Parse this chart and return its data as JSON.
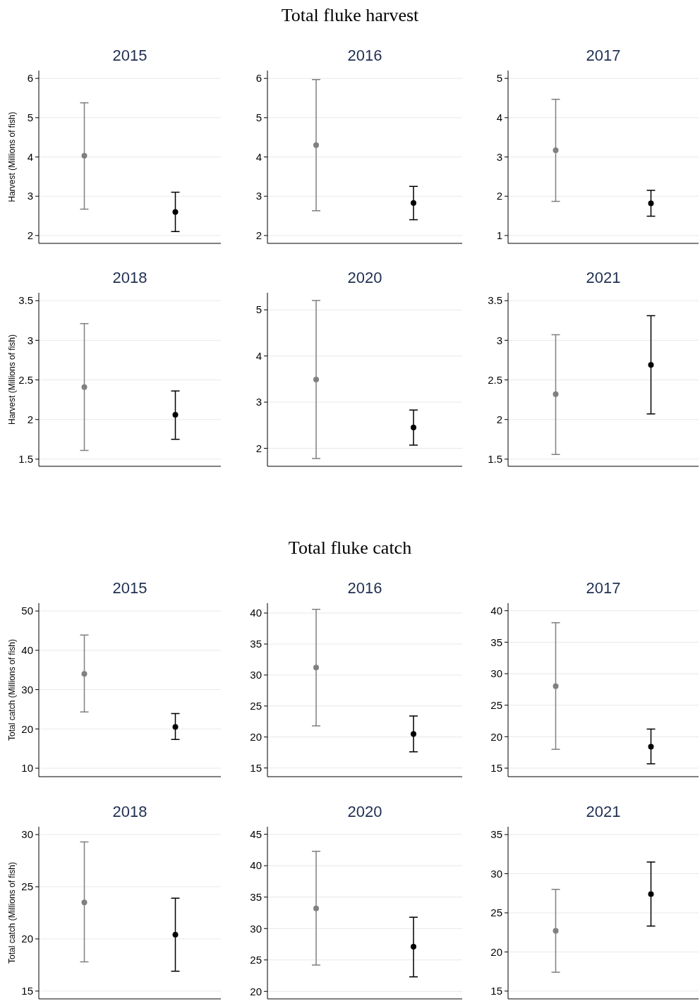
{
  "chart_data": [
    {
      "type": "scatter",
      "title": "2015",
      "ylabel": "Harvest (Millions of fish)",
      "annotations": [
        "Total fluke harvest"
      ],
      "categories": [
        null,
        null
      ],
      "values": [
        4.03,
        2.6
      ],
      "colors": [
        "#808080",
        "#000000"
      ],
      "errors": [
        [
          2.67,
          5.38
        ],
        [
          2.1,
          3.1
        ]
      ],
      "ylim": [
        1.8,
        6.2
      ],
      "yticks": [
        2,
        3,
        4,
        5,
        6
      ],
      "grid": "y",
      "tick_labels": "y",
      "marker": "circle"
    },
    {
      "type": "scatter",
      "title": "2016",
      "categories": [
        null,
        null
      ],
      "values": [
        4.3,
        2.83
      ],
      "colors": [
        "#808080",
        "#000000"
      ],
      "errors": [
        [
          2.63,
          5.97
        ],
        [
          2.4,
          3.25
        ]
      ],
      "ylim": [
        1.8,
        6.2
      ],
      "yticks": [
        2,
        3,
        4,
        5,
        6
      ],
      "grid": "y",
      "tick_labels": "y",
      "marker": "circle"
    },
    {
      "type": "scatter",
      "title": "2017",
      "categories": [
        null,
        null
      ],
      "values": [
        3.17,
        1.82
      ],
      "colors": [
        "#808080",
        "#000000"
      ],
      "errors": [
        [
          1.87,
          4.47
        ],
        [
          1.49,
          2.15
        ]
      ],
      "ylim": [
        0.8,
        5.2
      ],
      "yticks": [
        1,
        2,
        3,
        4,
        5
      ],
      "grid": "y",
      "tick_labels": "y",
      "marker": "circle"
    },
    {
      "type": "scatter",
      "title": "2018",
      "ylabel": "Harvest (Millions of fish)",
      "categories": [
        null,
        null
      ],
      "values": [
        2.41,
        2.06
      ],
      "colors": [
        "#808080",
        "#000000"
      ],
      "errors": [
        [
          1.61,
          3.21
        ],
        [
          1.75,
          2.36
        ]
      ],
      "ylim": [
        1.41,
        3.6
      ],
      "yticks": [
        1.5,
        2,
        2.5,
        3,
        3.5
      ],
      "grid": "y",
      "tick_labels": "y",
      "marker": "circle"
    },
    {
      "type": "scatter",
      "title": "2020",
      "categories": [
        null,
        null
      ],
      "values": [
        3.49,
        2.45
      ],
      "colors": [
        "#808080",
        "#000000"
      ],
      "errors": [
        [
          1.78,
          5.2
        ],
        [
          2.07,
          2.83
        ]
      ],
      "ylim": [
        1.61,
        5.37
      ],
      "yticks": [
        2,
        3,
        4,
        5
      ],
      "grid": "y",
      "tick_labels": "y",
      "marker": "circle"
    },
    {
      "type": "scatter",
      "title": "2021",
      "categories": [
        null,
        null
      ],
      "values": [
        2.32,
        2.69
      ],
      "colors": [
        "#808080",
        "#000000"
      ],
      "errors": [
        [
          1.56,
          3.07
        ],
        [
          2.07,
          3.31
        ]
      ],
      "ylim": [
        1.41,
        3.6
      ],
      "yticks": [
        1.5,
        2,
        2.5,
        3,
        3.5
      ],
      "grid": "y",
      "tick_labels": "y",
      "marker": "circle"
    },
    {
      "type": "scatter",
      "title": "2015",
      "ylabel": "Total catch (Millions of fish)",
      "annotations": [
        "Total fluke catch"
      ],
      "categories": [
        null,
        null
      ],
      "values": [
        34,
        20.5
      ],
      "colors": [
        "#808080",
        "#000000"
      ],
      "errors": [
        [
          24.3,
          43.9
        ],
        [
          17.3,
          23.9
        ]
      ],
      "ylim": [
        7.85,
        52
      ],
      "yticks": [
        10,
        20,
        30,
        40,
        50
      ],
      "grid": "y",
      "tick_labels": "y",
      "marker": "circle"
    },
    {
      "type": "scatter",
      "title": "2016",
      "categories": [
        null,
        null
      ],
      "values": [
        31.2,
        20.5
      ],
      "colors": [
        "#808080",
        "#000000"
      ],
      "errors": [
        [
          21.8,
          40.6
        ],
        [
          17.6,
          23.4
        ]
      ],
      "ylim": [
        13.6,
        41.6
      ],
      "yticks": [
        15,
        20,
        25,
        30,
        35,
        40
      ],
      "grid": "y",
      "tick_labels": "y",
      "marker": "circle"
    },
    {
      "type": "scatter",
      "title": "2017",
      "categories": [
        null,
        null
      ],
      "values": [
        28,
        18.4
      ],
      "colors": [
        "#808080",
        "#000000"
      ],
      "errors": [
        [
          18,
          38.1
        ],
        [
          15.7,
          21.2
        ]
      ],
      "ylim": [
        13.65,
        41.2
      ],
      "yticks": [
        15,
        20,
        25,
        30,
        35,
        40
      ],
      "grid": "y",
      "tick_labels": "y",
      "marker": "circle"
    },
    {
      "type": "scatter",
      "title": "2018",
      "ylabel": "Total catch (Millions of fish)",
      "categories": [
        null,
        null
      ],
      "values": [
        23.5,
        20.4
      ],
      "colors": [
        "#808080",
        "#000000"
      ],
      "errors": [
        [
          17.8,
          29.3
        ],
        [
          16.9,
          23.9
        ]
      ],
      "ylim": [
        14.25,
        30.75
      ],
      "yticks": [
        15,
        20,
        25,
        30
      ],
      "grid": "y",
      "tick_labels": "y",
      "marker": "circle"
    },
    {
      "type": "scatter",
      "title": "2020",
      "categories": [
        null,
        null
      ],
      "values": [
        33.2,
        27.1
      ],
      "colors": [
        "#808080",
        "#000000"
      ],
      "errors": [
        [
          24.2,
          42.3
        ],
        [
          22.3,
          31.8
        ]
      ],
      "ylim": [
        18.8,
        46.2
      ],
      "yticks": [
        20,
        25,
        30,
        35,
        40,
        45
      ],
      "grid": "y",
      "tick_labels": "y",
      "marker": "circle"
    },
    {
      "type": "scatter",
      "title": "2021",
      "categories": [
        null,
        null
      ],
      "values": [
        22.7,
        27.4
      ],
      "colors": [
        "#808080",
        "#000000"
      ],
      "errors": [
        [
          17.4,
          28
        ],
        [
          23.3,
          31.5
        ]
      ],
      "ylim": [
        14,
        36
      ],
      "yticks": [
        15,
        20,
        25,
        30,
        35
      ],
      "grid": "y",
      "tick_labels": "y",
      "marker": "circle"
    }
  ]
}
